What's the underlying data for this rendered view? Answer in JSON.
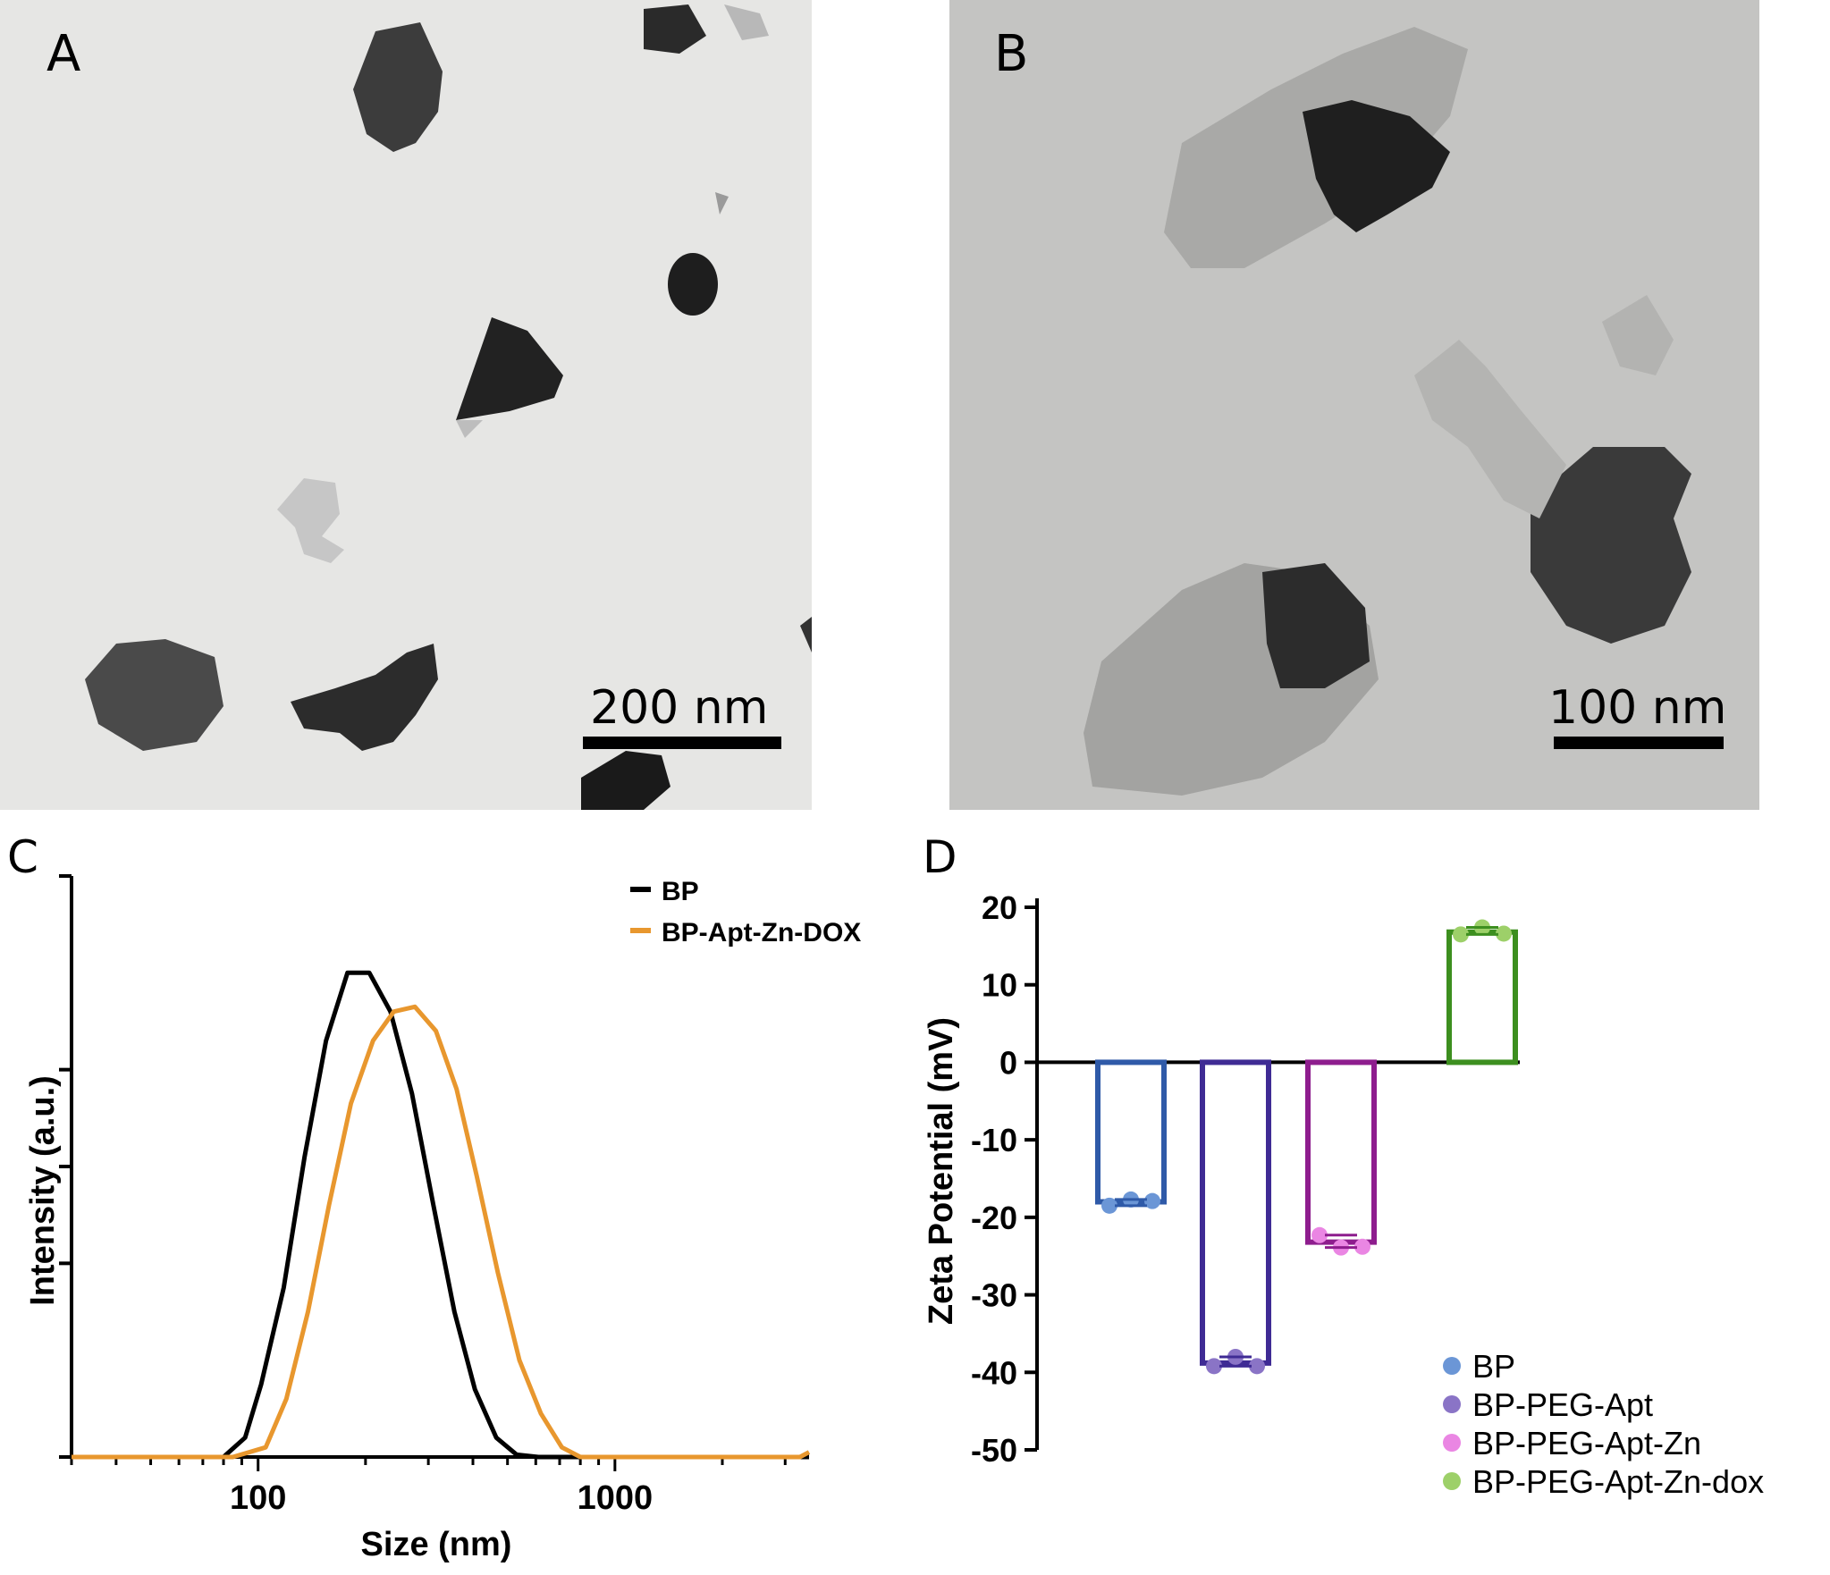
{
  "panels": {
    "a": {
      "label": "A",
      "scale_bar": "200 nm",
      "background": "#e6e6e4"
    },
    "b": {
      "label": "B",
      "scale_bar": "100 nm",
      "background": "#c4c4c2"
    },
    "c": {
      "label": "C"
    },
    "d": {
      "label": "D"
    }
  },
  "chart_data": [
    {
      "type": "line",
      "panel": "C",
      "title": "",
      "xlabel": "Size (nm)",
      "ylabel": "Intensity (a.u.)",
      "xscale": "log",
      "xlim": [
        30,
        3500
      ],
      "ylim": [
        0,
        1.2
      ],
      "x_ticks": [
        100,
        1000
      ],
      "x_tick_labels": [
        "100",
        "1000"
      ],
      "y_tick_labels": [],
      "legend_position": "top-right",
      "series": [
        {
          "name": "BP",
          "color": "#000000",
          "x": [
            30,
            80,
            92,
            102,
            118,
            135,
            155,
            178,
            205,
            235,
            270,
            310,
            355,
            405,
            465,
            530,
            610,
            700,
            3500
          ],
          "y": [
            0,
            0,
            0.04,
            0.15,
            0.35,
            0.62,
            0.86,
            1.0,
            1.0,
            0.92,
            0.75,
            0.52,
            0.3,
            0.14,
            0.04,
            0.005,
            0,
            0,
            0
          ]
        },
        {
          "name": "BP-Apt-Zn-DOX",
          "color": "#e8972e",
          "x": [
            30,
            85,
            105,
            120,
            138,
            158,
            182,
            210,
            240,
            275,
            315,
            360,
            410,
            470,
            540,
            620,
            710,
            800,
            3300,
            3500
          ],
          "y": [
            0,
            0,
            0.02,
            0.12,
            0.3,
            0.52,
            0.73,
            0.86,
            0.92,
            0.93,
            0.88,
            0.76,
            0.58,
            0.38,
            0.2,
            0.09,
            0.02,
            0,
            0,
            0.01
          ]
        }
      ]
    },
    {
      "type": "bar",
      "panel": "D",
      "title": "",
      "xlabel": "",
      "ylabel": "Zeta Potential (mV)",
      "ylim": [
        -50,
        20
      ],
      "y_ticks": [
        20,
        10,
        0,
        -10,
        -20,
        -30,
        -40,
        -50
      ],
      "y_tick_labels": [
        "20",
        "10",
        "0",
        "-10",
        "-20",
        "-30",
        "-40",
        "-50"
      ],
      "legend_position": "bottom-right",
      "series": [
        {
          "name": "BP",
          "value": -18.0,
          "points": [
            -18.5,
            -17.7,
            -17.9
          ],
          "color": "#2f5aa8",
          "dot": "#6b96d6"
        },
        {
          "name": "BP-PEG-Apt",
          "value": -38.8,
          "points": [
            -39.2,
            -38.0,
            -39.2
          ],
          "color": "#3f2b94",
          "dot": "#8a74c6"
        },
        {
          "name": "BP-PEG-Apt-Zn",
          "value": -23.2,
          "points": [
            -22.3,
            -23.9,
            -23.8
          ],
          "color": "#8e1d8e",
          "dot": "#ea86e3"
        },
        {
          "name": "BP-PEG-Apt-Zn-dox",
          "value": 16.8,
          "points": [
            16.5,
            17.4,
            16.6
          ],
          "color": "#3d8f1f",
          "dot": "#9dd069"
        }
      ]
    }
  ]
}
